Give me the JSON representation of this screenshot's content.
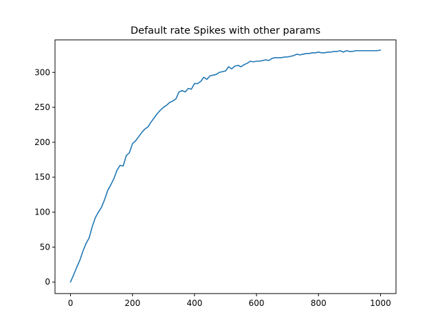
{
  "chart_data": {
    "type": "line",
    "title": "Default rate Spikes with other params",
    "xlabel": "",
    "ylabel": "",
    "xlim": [
      -50,
      1050
    ],
    "ylim": [
      -16.5,
      346.5
    ],
    "xticks": [
      0,
      200,
      400,
      600,
      800,
      1000
    ],
    "yticks": [
      0,
      50,
      100,
      150,
      200,
      250,
      300
    ],
    "grid": false,
    "legend": "none",
    "colors": {
      "line": "#1f77b4",
      "axis": "#000000"
    },
    "series": [
      {
        "x": [
          0,
          10,
          20,
          30,
          40,
          50,
          60,
          70,
          80,
          90,
          100,
          110,
          120,
          130,
          140,
          150,
          160,
          170,
          180,
          190,
          200,
          210,
          220,
          230,
          240,
          250,
          260,
          270,
          280,
          290,
          300,
          310,
          320,
          330,
          340,
          350,
          360,
          370,
          380,
          390,
          400,
          410,
          420,
          430,
          440,
          450,
          460,
          470,
          480,
          490,
          500,
          510,
          520,
          530,
          540,
          550,
          560,
          570,
          580,
          590,
          600,
          610,
          620,
          630,
          640,
          650,
          660,
          670,
          680,
          690,
          700,
          710,
          720,
          730,
          740,
          750,
          760,
          770,
          780,
          790,
          800,
          810,
          820,
          830,
          840,
          850,
          860,
          870,
          880,
          890,
          900,
          910,
          920,
          930,
          940,
          950,
          960,
          970,
          980,
          990,
          1000
        ],
        "y": [
          0,
          10,
          21,
          31,
          44,
          55,
          63,
          79,
          92,
          100,
          107,
          118,
          131,
          139,
          148,
          160,
          167,
          166,
          181,
          185,
          198,
          202,
          208,
          214,
          219,
          222,
          229,
          235,
          241,
          246,
          250,
          253,
          257,
          259,
          262,
          272,
          274,
          272,
          277,
          276,
          284,
          284,
          287,
          293,
          290,
          295,
          296,
          297,
          300,
          301,
          302,
          308,
          305,
          309,
          310,
          308,
          311,
          313,
          316,
          315,
          316,
          316,
          317,
          318,
          317,
          320,
          321,
          321,
          321,
          322,
          322,
          323,
          324,
          326,
          325,
          326,
          327,
          327,
          328,
          328,
          329,
          328,
          328,
          329,
          329,
          330,
          330,
          331,
          329,
          331,
          330,
          330,
          331,
          331,
          331,
          331,
          331,
          331,
          331,
          331,
          332
        ]
      }
    ]
  }
}
